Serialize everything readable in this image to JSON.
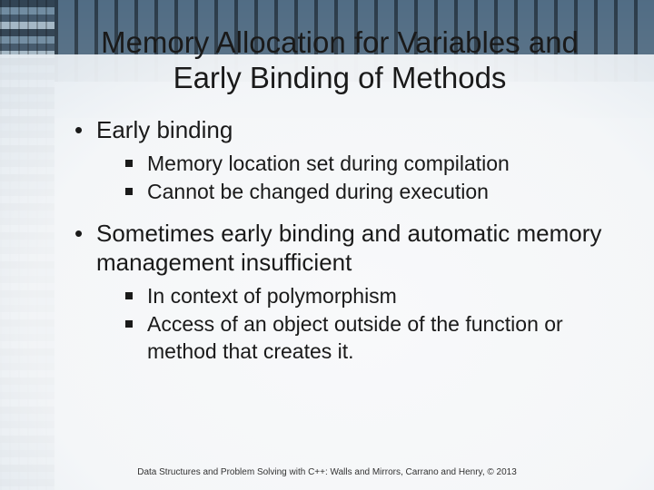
{
  "title": "Memory Allocation for Variables and Early Binding of Methods",
  "bullets": [
    {
      "text": "Early binding",
      "sub": [
        "Memory location set during compilation",
        "Cannot be changed during execution"
      ]
    },
    {
      "text": "Sometimes early binding and automatic memory management insufficient",
      "sub": [
        "In context of polymorphism",
        "Access of an object outside of the function or method that creates it."
      ]
    }
  ],
  "footer": "Data Structures and Problem Solving with C++: Walls and Mirrors, Carrano and Henry, © 2013"
}
